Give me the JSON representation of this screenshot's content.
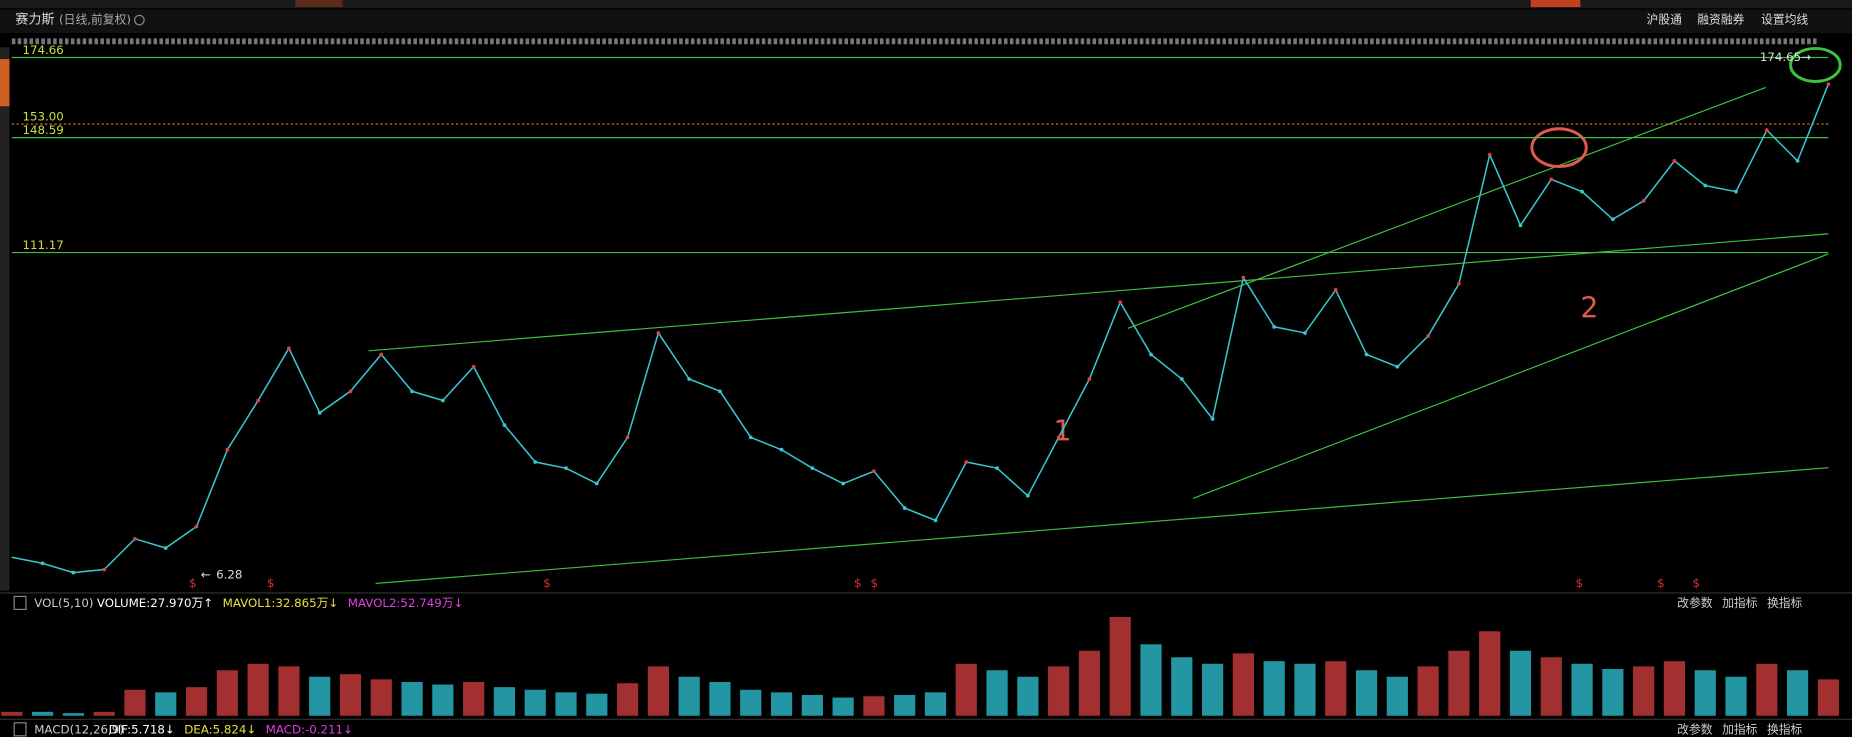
{
  "header": {
    "name": "赛力斯",
    "period": "(日线,前复权)",
    "links": [
      "沪股通",
      "融资融券",
      "设置均线"
    ]
  },
  "price_chart": {
    "ylim": [
      5,
      178
    ],
    "levels": [
      {
        "value": 174.66,
        "label": "174.66"
      },
      {
        "value": 153,
        "label": "153.00"
      },
      {
        "value": 148.59,
        "label": "148.59"
      },
      {
        "value": 111.17,
        "label": "111.17"
      }
    ],
    "high_marker": 174.65,
    "low_marker": 6.28,
    "annotations": [
      "1",
      "2"
    ],
    "close": [
      12,
      10,
      7,
      8,
      18,
      15,
      22,
      47,
      63,
      80,
      59,
      66,
      78,
      66,
      63,
      74,
      55,
      43,
      41,
      36,
      51,
      85,
      70,
      66,
      51,
      47,
      41,
      36,
      40,
      28,
      24,
      43,
      41,
      32,
      51,
      70,
      95,
      78,
      70,
      57,
      103,
      87,
      85,
      99,
      78,
      74,
      84,
      101,
      143,
      120,
      135,
      131,
      122,
      128,
      141,
      133,
      131,
      151,
      141,
      166
    ],
    "color": "#38c6d0"
  },
  "volume_panel": {
    "title": "VOL(5,10)",
    "readouts": [
      {
        "text": "VOLUME:27.970万↑",
        "color": "#ffffff"
      },
      {
        "text": "MAVOL1:32.865万↓",
        "color": "#e8e040"
      },
      {
        "text": "MAVOL2:52.749万↓",
        "color": "#e040e0"
      }
    ],
    "buttons": [
      "改参数",
      "加指标",
      "换指标"
    ],
    "ylim": [
      0,
      80
    ],
    "volume": [
      3,
      3,
      2,
      3,
      20,
      18,
      22,
      35,
      40,
      38,
      30,
      32,
      28,
      26,
      24,
      26,
      22,
      20,
      18,
      17,
      25,
      38,
      30,
      26,
      20,
      18,
      16,
      14,
      15,
      16,
      18,
      40,
      35,
      30,
      38,
      50,
      76,
      55,
      45,
      40,
      48,
      42,
      40,
      42,
      35,
      30,
      38,
      50,
      65,
      50,
      45,
      40,
      36,
      38,
      42,
      35,
      30,
      40,
      35,
      28
    ]
  },
  "macd_panel": {
    "title": "MACD(12,26,9)",
    "readouts": [
      {
        "text": "DIF:5.718↓",
        "color": "#ffffff"
      },
      {
        "text": "DEA:5.824↓",
        "color": "#e8e040"
      },
      {
        "text": "MACD:-0.211↓",
        "color": "#e040e0"
      }
    ],
    "buttons": [
      "改参数",
      "加指标",
      "换指标"
    ]
  }
}
